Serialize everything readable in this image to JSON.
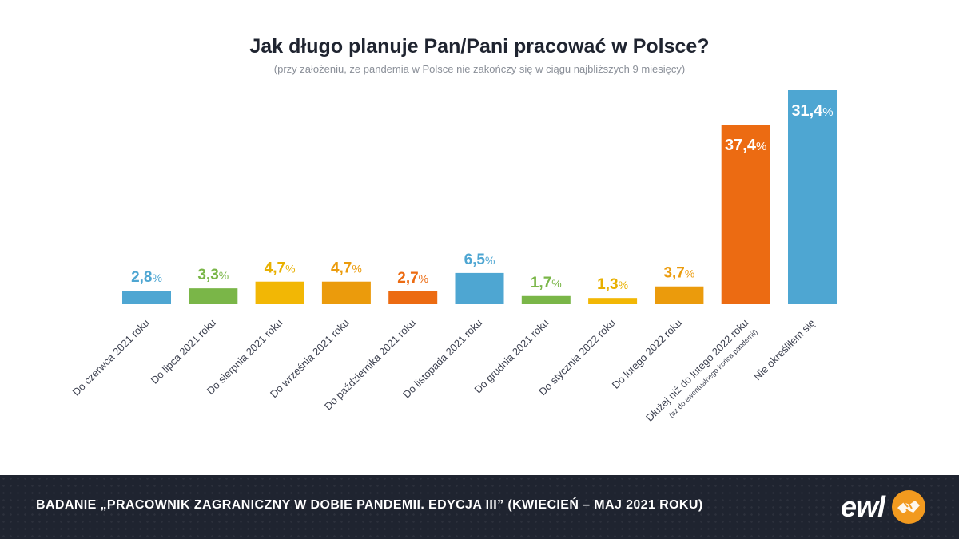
{
  "chart_data": {
    "type": "bar",
    "title": "Jak długo planuje Pan/Pani pracować w Polsce?",
    "subtitle": "(przy założeniu, że pandemia w Polsce nie zakończy się w ciągu najbliższych 9 miesięcy)",
    "categories": [
      "Do czerwca 2021 roku",
      "Do lipca 2021 roku",
      "Do sierpnia 2021 roku",
      "Do września 2021 roku",
      "Do października 2021 roku",
      "Do listopada 2021 roku",
      "Do grudnia 2021 roku",
      "Do stycznia 2022 roku",
      "Do lutego 2022 roku",
      "Dłużej niż do lutego 2022 roku",
      "Nie określiłem się"
    ],
    "category_notes": [
      "",
      "",
      "",
      "",
      "",
      "",
      "",
      "",
      "",
      "(aż do ewentualnego końca pandemii)",
      ""
    ],
    "values": [
      2.8,
      3.3,
      4.7,
      4.7,
      2.7,
      6.5,
      1.7,
      1.3,
      3.7,
      37.4,
      31.4
    ],
    "value_labels": [
      "2,8",
      "3,3",
      "4,7",
      "4,7",
      "2,7",
      "6,5",
      "1,7",
      "1,3",
      "3,7",
      "37,4",
      "31,4"
    ],
    "unit": "%",
    "colors": [
      "#4ea6d2",
      "#7ab648",
      "#f2b705",
      "#eb9b0c",
      "#ec6b12",
      "#4ea6d2",
      "#7ab648",
      "#f2b705",
      "#eb9b0c",
      "#ec6b12",
      "#4ea6d2"
    ],
    "label_colors": [
      "#4ea6d2",
      "#7ab648",
      "#e8b000",
      "#eb9b0c",
      "#ec6b12",
      "#4ea6d2",
      "#7ab648",
      "#e8b000",
      "#eb9b0c",
      "#ffffff",
      "#ffffff"
    ],
    "value_label_position": [
      "above",
      "above",
      "above",
      "above",
      "above",
      "above",
      "above",
      "above",
      "above",
      "inside",
      "inside"
    ],
    "grid": false,
    "legend": "none"
  },
  "footer": {
    "text": "BADANIE „PRACOWNIK ZAGRANICZNY W DOBIE PANDEMII. EDYCJA III”  (KWIECIEŃ – MAJ 2021 ROKU)"
  },
  "logo": {
    "text": "ewl",
    "icon": "handshake-icon",
    "accent": "#f29a1f"
  }
}
